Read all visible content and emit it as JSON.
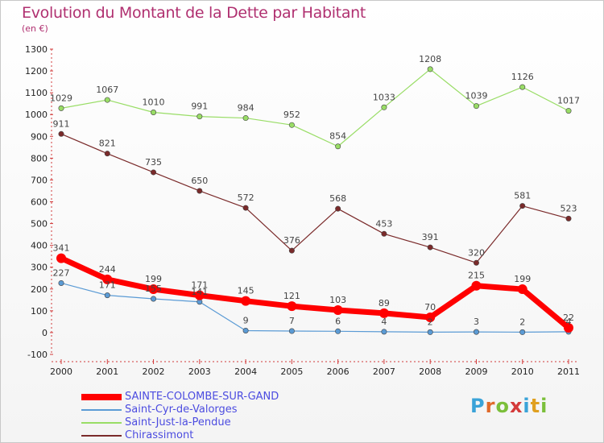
{
  "title": "Evolution du Montant de la Dette par Habitant",
  "unit": "(en €)",
  "logo": {
    "text": "Proxiti",
    "letter_colors": [
      "#3aa3d8",
      "#e06a2a",
      "#7bbf3a",
      "#d43a3a",
      "#3aa3d8",
      "#e0a020",
      "#7bbf3a"
    ]
  },
  "chart_data": {
    "type": "line",
    "title": "Evolution du Montant de la Dette par Habitant",
    "ylabel": "(en €)",
    "xlabel": "",
    "ylim": [
      -100,
      1300
    ],
    "yticks": [
      -100,
      0,
      100,
      200,
      300,
      400,
      500,
      600,
      700,
      800,
      900,
      1000,
      1100,
      1200,
      1300
    ],
    "categories": [
      "2000",
      "2001",
      "2002",
      "2003",
      "2004",
      "2005",
      "2006",
      "2007",
      "2008",
      "2009",
      "2010",
      "2011"
    ],
    "grid": false,
    "legend_position": "bottom-left",
    "series": [
      {
        "name": "SAINTE-COLOMBE-SUR-GAND",
        "color": "#ff0000",
        "values": [
          341,
          244,
          199,
          171,
          145,
          121,
          103,
          89,
          70,
          215,
          199,
          22
        ],
        "labels": [
          "341",
          "244",
          "199",
          "171",
          "145",
          "121",
          "103",
          "89",
          "70",
          "215",
          "199",
          "22"
        ]
      },
      {
        "name": "Saint-Cyr-de-Valorges",
        "color": "#5b9bd5",
        "values": [
          227,
          171,
          155,
          141,
          9,
          7,
          6,
          4,
          2,
          3,
          2,
          4
        ],
        "labels": [
          "227",
          "171",
          "155",
          "141",
          "9",
          "7",
          "6",
          "4",
          "2",
          "3",
          "2",
          "4"
        ]
      },
      {
        "name": "Saint-Just-la-Pendue",
        "color": "#99dd66",
        "values": [
          1029,
          1067,
          1010,
          991,
          984,
          952,
          854,
          1033,
          1208,
          1039,
          1126,
          1017
        ],
        "labels": [
          "1029",
          "1067",
          "1010",
          "991",
          "984",
          "952",
          "854",
          "1033",
          "1208",
          "1039",
          "1126",
          "1017"
        ]
      },
      {
        "name": "Chirassimont",
        "color": "#7a2a2a",
        "values": [
          911,
          821,
          735,
          650,
          572,
          376,
          568,
          453,
          391,
          320,
          581,
          523
        ],
        "labels": [
          "911",
          "821",
          "735",
          "650",
          "572",
          "376",
          "568",
          "453",
          "391",
          "320",
          "581",
          "523"
        ]
      }
    ]
  }
}
